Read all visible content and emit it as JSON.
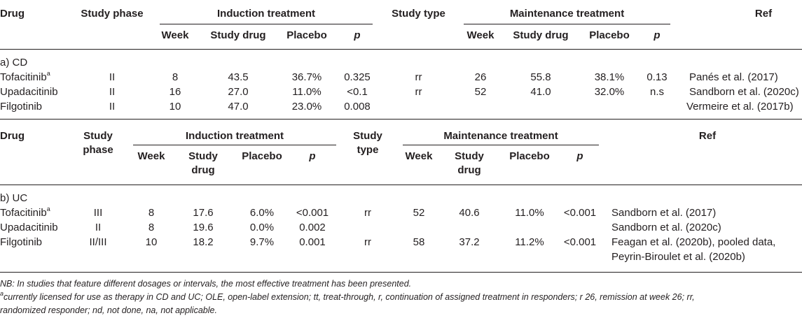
{
  "table_cd": {
    "headers": {
      "drug": "Drug",
      "study_phase": "Study phase",
      "induction": "Induction treatment",
      "study_type": "Study type",
      "maintenance": "Maintenance treatment",
      "ref": "Ref",
      "week": "Week",
      "study_drug": "Study drug",
      "placebo": "Placebo",
      "p": "p"
    },
    "section_label": "a) CD",
    "rows": [
      {
        "drug": "Tofacitinib",
        "sup": "a",
        "phase": "II",
        "ind_week": "8",
        "ind_drug": "43.5",
        "ind_placebo": "36.7%",
        "ind_p": "0.325",
        "type": "rr",
        "main_week": "26",
        "main_drug": "55.8",
        "main_placebo": "38.1%",
        "main_p": "0.13",
        "ref": "Panés et al. (2017)"
      },
      {
        "drug": "Upadacitinib",
        "phase": "II",
        "ind_week": "16",
        "ind_drug": "27.0",
        "ind_placebo": "11.0%",
        "ind_p": "<0.1",
        "type": "rr",
        "main_week": "52",
        "main_drug": "41.0",
        "main_placebo": "32.0%",
        "main_p": "n.s",
        "ref": "Sandborn et al. (2020c)"
      },
      {
        "drug": "Filgotinib",
        "phase": "II",
        "ind_week": "10",
        "ind_drug": "47.0",
        "ind_placebo": "23.0%",
        "ind_p": "0.008",
        "type": "",
        "main_week": "",
        "main_drug": "",
        "main_placebo": "",
        "main_p": "",
        "ref": "Vermeire et al. (2017b)"
      }
    ]
  },
  "table_uc": {
    "headers": {
      "drug": "Drug",
      "study_phase_1": "Study",
      "study_phase_2": "phase",
      "induction": "Induction treatment",
      "study_type_1": "Study",
      "study_type_2": "type",
      "maintenance": "Maintenance treatment",
      "ref": "Ref",
      "week": "Week",
      "study_drug_1": "Study",
      "study_drug_2": "drug",
      "placebo": "Placebo",
      "p": "p"
    },
    "section_label": "b) UC",
    "rows": [
      {
        "drug": "Tofacitinib",
        "sup": "a",
        "phase": "III",
        "ind_week": "8",
        "ind_drug": "17.6",
        "ind_placebo": "6.0%",
        "ind_p": "<0.001",
        "type": "rr",
        "main_week": "52",
        "main_drug": "40.6",
        "main_placebo": "11.0%",
        "main_p": "<0.001",
        "ref": "Sandborn et al. (2017)"
      },
      {
        "drug": "Upadacitinib",
        "phase": "II",
        "ind_week": "8",
        "ind_drug": "19.6",
        "ind_placebo": "0.0%",
        "ind_p": "0.002",
        "type": "",
        "main_week": "",
        "main_drug": "",
        "main_placebo": "",
        "main_p": "",
        "ref": "Sandborn et al. (2020c)"
      },
      {
        "drug": "Filgotinib",
        "phase": "II/III",
        "ind_week": "10",
        "ind_drug": "18.2",
        "ind_placebo": "9.7%",
        "ind_p": "0.001",
        "type": "rr",
        "main_week": "58",
        "main_drug": "37.2",
        "main_placebo": "11.2%",
        "main_p": "<0.001",
        "ref": "Feagan et al. (2020b), pooled data,",
        "ref_2": "Peyrin-Biroulet et al. (2020b)"
      }
    ]
  },
  "footnotes": {
    "nb": "NB: In studies that feature different dosages or intervals, the most effective treatment has been presented.",
    "a_mark": "a",
    "a_line1": "currently licensed for use as therapy in CD and UC; OLE, open-label extension; tt, treat-through, r, continuation of assigned treatment in responders; r 26, remission at week 26; rr,",
    "a_line2": "randomized responder; nd, not done, na, not applicable."
  }
}
